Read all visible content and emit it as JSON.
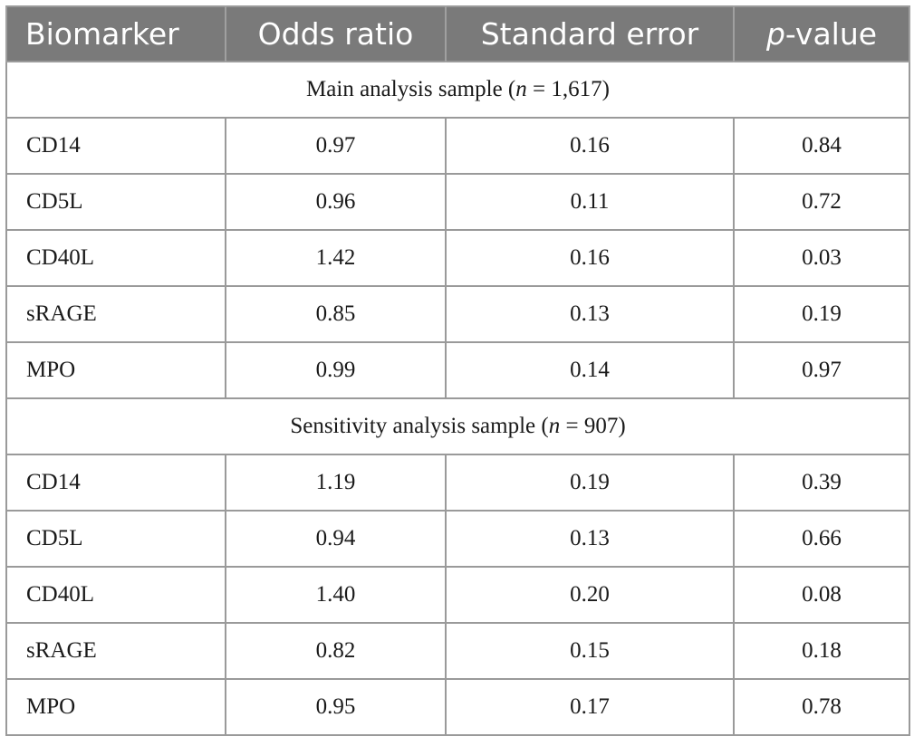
{
  "table": {
    "headers": {
      "biomarker": "Biomarker",
      "odds_ratio": "Odds ratio",
      "standard_error": "Standard error",
      "p_value_p": "p",
      "p_value_rest": "-value"
    },
    "sections": [
      {
        "title_prefix": "Main analysis sample (",
        "n_symbol": "n",
        "title_suffix": " = 1,617)",
        "rows": [
          {
            "biomarker": "CD14",
            "odds_ratio": "0.97",
            "standard_error": "0.16",
            "p_value": "0.84"
          },
          {
            "biomarker": "CD5L",
            "odds_ratio": "0.96",
            "standard_error": "0.11",
            "p_value": "0.72"
          },
          {
            "biomarker": "CD40L",
            "odds_ratio": "1.42",
            "standard_error": "0.16",
            "p_value": "0.03"
          },
          {
            "biomarker": "sRAGE",
            "odds_ratio": "0.85",
            "standard_error": "0.13",
            "p_value": "0.19"
          },
          {
            "biomarker": "MPO",
            "odds_ratio": "0.99",
            "standard_error": "0.14",
            "p_value": "0.97"
          }
        ]
      },
      {
        "title_prefix": "Sensitivity analysis sample (",
        "n_symbol": "n",
        "title_suffix": " = 907)",
        "rows": [
          {
            "biomarker": "CD14",
            "odds_ratio": "1.19",
            "standard_error": "0.19",
            "p_value": "0.39"
          },
          {
            "biomarker": "CD5L",
            "odds_ratio": "0.94",
            "standard_error": "0.13",
            "p_value": "0.66"
          },
          {
            "biomarker": "CD40L",
            "odds_ratio": "1.40",
            "standard_error": "0.20",
            "p_value": "0.08"
          },
          {
            "biomarker": "sRAGE",
            "odds_ratio": "0.82",
            "standard_error": "0.15",
            "p_value": "0.18"
          },
          {
            "biomarker": "MPO",
            "odds_ratio": "0.95",
            "standard_error": "0.17",
            "p_value": "0.78"
          }
        ]
      }
    ]
  },
  "colors": {
    "header_background": "#7a7a7a",
    "header_text": "#ffffff",
    "border": "#9a9a9a",
    "body_text": "#1a1a1a"
  }
}
